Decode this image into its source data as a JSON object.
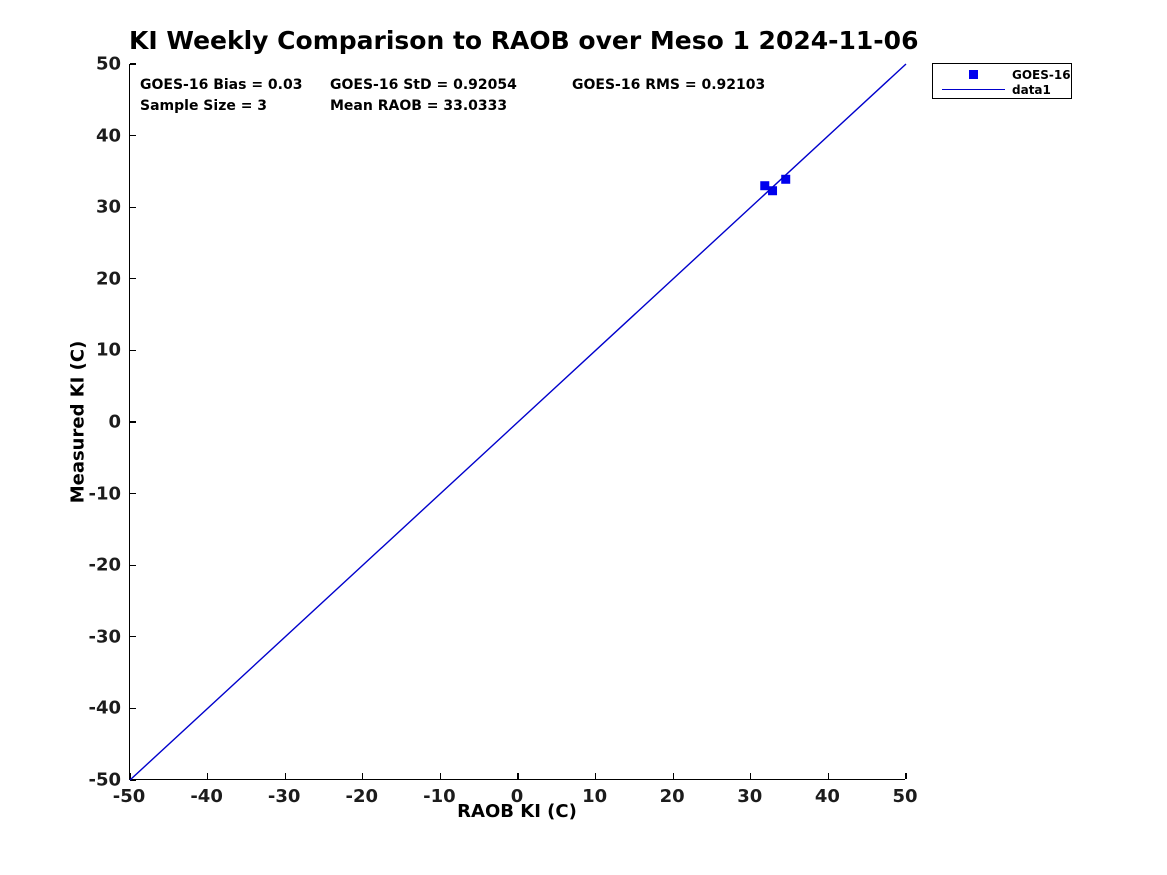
{
  "chart_data": {
    "type": "scatter",
    "title": "KI Weekly Comparison to RAOB over Meso 1 2024-11-06",
    "xlabel": "RAOB KI (C)",
    "ylabel": "Measured KI (C)",
    "xlim": [
      -50,
      50
    ],
    "ylim": [
      -50,
      50
    ],
    "x_ticks": [
      -50,
      -40,
      -30,
      -20,
      -10,
      0,
      10,
      20,
      30,
      40,
      50
    ],
    "y_ticks": [
      -50,
      -40,
      -30,
      -20,
      -10,
      0,
      10,
      20,
      30,
      40,
      50
    ],
    "grid": false,
    "legend_position": "outside-top-right",
    "series": [
      {
        "name": "GOES-16",
        "type": "scatter",
        "marker": "square",
        "color": "#0000EE",
        "points": [
          [
            31.8,
            33.0
          ],
          [
            32.8,
            32.3
          ],
          [
            34.5,
            33.9
          ]
        ]
      },
      {
        "name": "data1",
        "type": "line",
        "color": "#0000CC",
        "points": [
          [
            -50,
            -50
          ],
          [
            50,
            50
          ]
        ]
      }
    ],
    "annotations": {
      "bias": "GOES-16 Bias = 0.03",
      "std": "GOES-16 StD = 0.92054",
      "rms": "GOES-16 RMS = 0.92103",
      "sample_size": "Sample Size = 3",
      "mean_raob": "Mean RAOB = 33.0333"
    }
  },
  "colors": {
    "background": "#FFFFFF",
    "axis": "#000000",
    "marker_blue": "#0000EE",
    "line_blue": "#0000CC"
  }
}
